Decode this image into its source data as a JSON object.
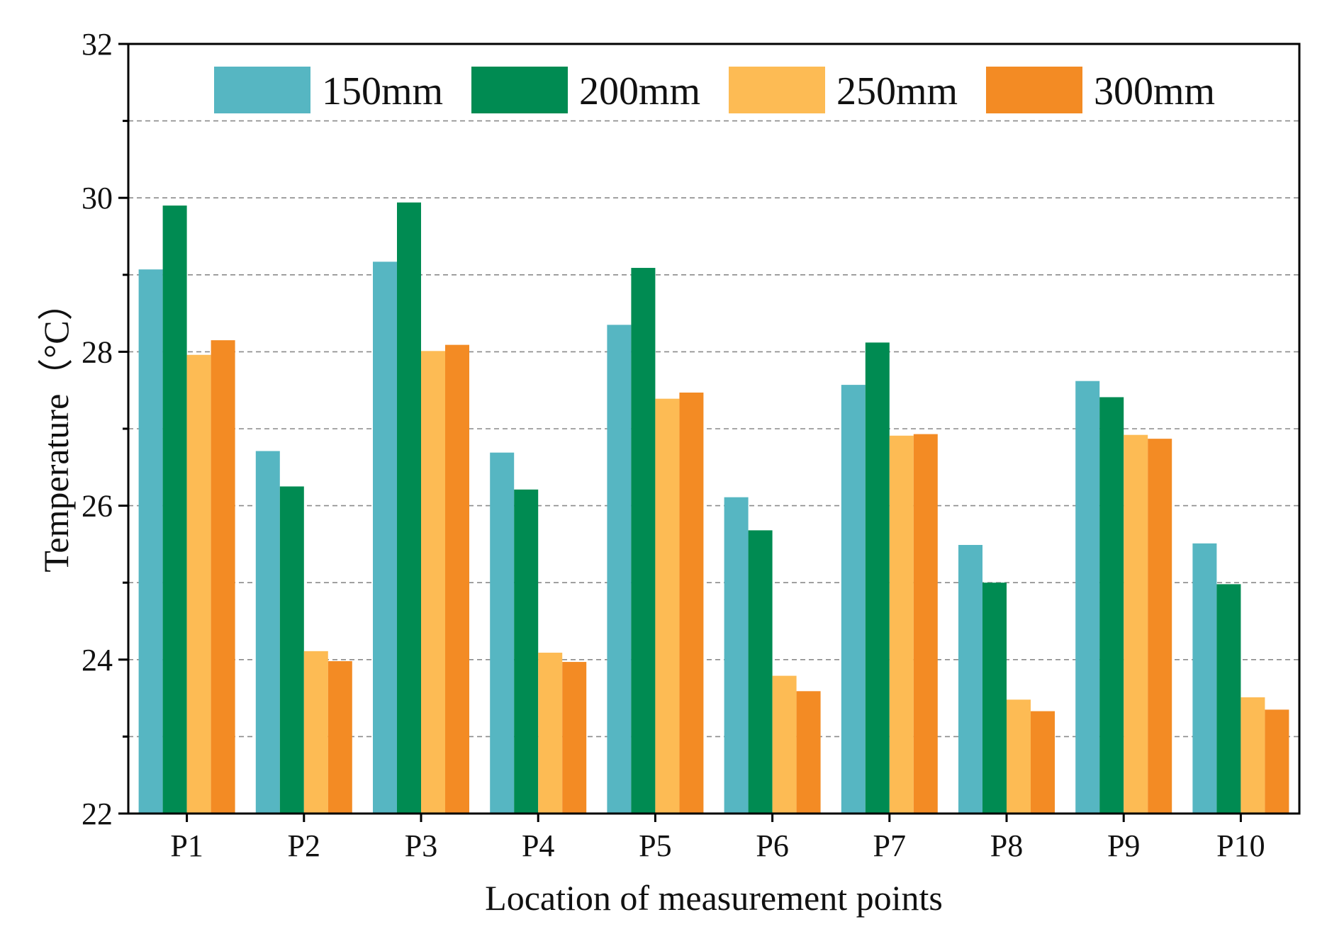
{
  "chart_data": {
    "type": "bar",
    "xlabel": "Location of measurement points",
    "ylabel": "Temperature（°C）",
    "ylim": [
      22,
      32
    ],
    "yticks": [
      "22",
      "24",
      "26",
      "28",
      "30",
      "32"
    ],
    "grid": "dashed horizontal",
    "legend_position": "top",
    "categories": [
      "P1",
      "P2",
      "P3",
      "P4",
      "P5",
      "P6",
      "P7",
      "P8",
      "P9",
      "P10"
    ],
    "series": [
      {
        "name": "150mm",
        "color": "#56B6C2",
        "values": [
          29.07,
          26.71,
          29.17,
          26.69,
          28.35,
          26.11,
          27.57,
          25.49,
          27.62,
          25.51
        ]
      },
      {
        "name": "200mm",
        "color": "#008B52",
        "values": [
          29.9,
          26.25,
          29.94,
          26.21,
          29.09,
          25.68,
          28.12,
          25.0,
          27.41,
          24.98
        ]
      },
      {
        "name": "250mm",
        "color": "#FDBB54",
        "values": [
          27.96,
          24.11,
          28.01,
          24.09,
          27.39,
          23.79,
          26.91,
          23.48,
          26.92,
          23.51
        ]
      },
      {
        "name": "300mm",
        "color": "#F38B24",
        "values": [
          28.15,
          23.98,
          28.09,
          23.97,
          27.47,
          23.59,
          26.93,
          23.33,
          26.87,
          23.35
        ]
      }
    ]
  }
}
